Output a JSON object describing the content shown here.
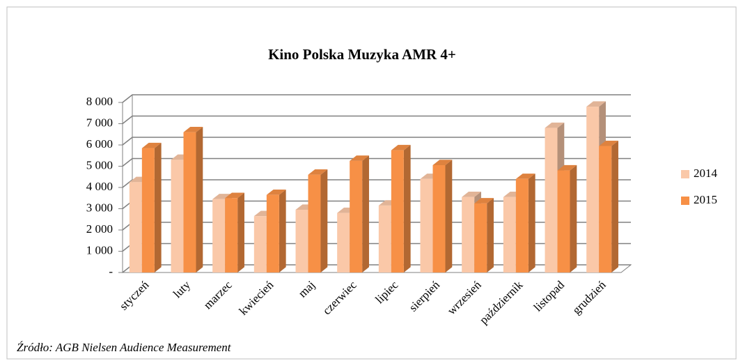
{
  "chart_data": {
    "type": "bar3d",
    "title": "Kino Polska Muzyka  AMR 4+",
    "categories": [
      "styczeń",
      "luty",
      "marzec",
      "kwiecień",
      "maj",
      "czerwiec",
      "lipiec",
      "sierpień",
      "wrzesień",
      "październik",
      "listopad",
      "grudzień"
    ],
    "series": [
      {
        "name": "2014",
        "color": "#fac8a8",
        "values": [
          4250,
          5300,
          3450,
          2650,
          2950,
          2800,
          3150,
          4400,
          3550,
          3550,
          6800,
          7800
        ]
      },
      {
        "name": "2015",
        "color": "#f79046",
        "values": [
          5850,
          6600,
          3500,
          3650,
          4600,
          5250,
          5750,
          5050,
          3250,
          4400,
          4800,
          5950
        ]
      }
    ],
    "ylim": [
      0,
      8000
    ],
    "yticks": [
      {
        "value": 0,
        "label": "-"
      },
      {
        "value": 1000,
        "label": "1 000"
      },
      {
        "value": 2000,
        "label": "2 000"
      },
      {
        "value": 3000,
        "label": "3 000"
      },
      {
        "value": 4000,
        "label": "4 000"
      },
      {
        "value": 5000,
        "label": "5 000"
      },
      {
        "value": 6000,
        "label": "6 000"
      },
      {
        "value": 7000,
        "label": "7 000"
      },
      {
        "value": 8000,
        "label": "8 000"
      }
    ],
    "grid": true,
    "legend": "right",
    "source": "Źródło: AGB Nielsen Audience Measurement"
  }
}
